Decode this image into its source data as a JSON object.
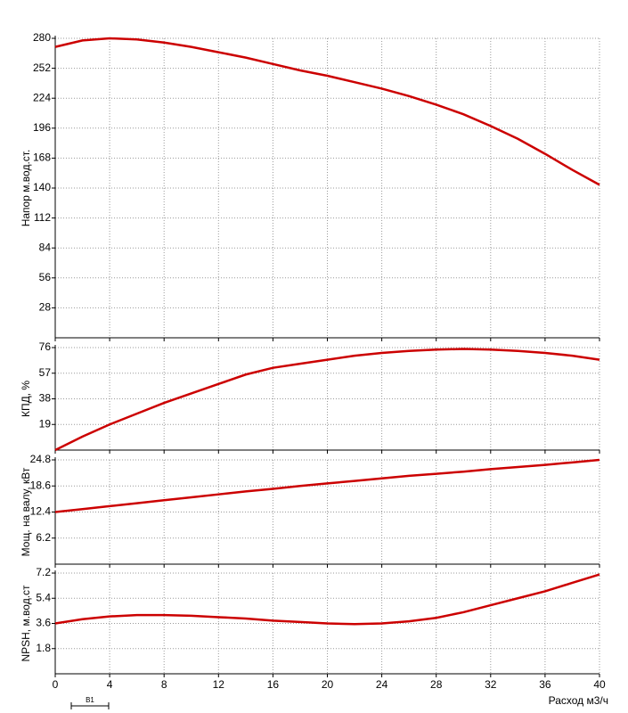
{
  "chart_data": [
    {
      "type": "line",
      "y_label": "Напор м.вод.ст.",
      "color": "#cc0000",
      "grid": true,
      "x": [
        0,
        2,
        4,
        6,
        8,
        10,
        12,
        14,
        16,
        18,
        20,
        22,
        24,
        26,
        28,
        30,
        32,
        34,
        36,
        38,
        40
      ],
      "values": [
        272,
        278,
        280,
        279,
        276,
        272,
        267,
        262,
        256,
        250,
        245,
        239,
        233,
        226,
        218,
        209,
        198,
        186,
        172,
        157,
        143
      ],
      "xlim": [
        0,
        40
      ],
      "ylim": [
        0,
        280
      ],
      "yticks": [
        28,
        56,
        84,
        112,
        140,
        168,
        196,
        224,
        252,
        280
      ]
    },
    {
      "type": "line",
      "y_label": "КПД, %",
      "color": "#cc0000",
      "grid": true,
      "x": [
        0,
        2,
        4,
        6,
        8,
        10,
        12,
        14,
        16,
        18,
        20,
        22,
        24,
        26,
        28,
        30,
        32,
        34,
        36,
        38,
        40
      ],
      "values": [
        0,
        10,
        19,
        27,
        35,
        42,
        49,
        56,
        61,
        64,
        67,
        70,
        72,
        73.5,
        74.5,
        75,
        74.5,
        73.5,
        72,
        70,
        67
      ],
      "xlim": [
        0,
        40
      ],
      "ylim": [
        0,
        76
      ],
      "yticks": [
        19,
        38,
        57,
        76
      ]
    },
    {
      "type": "line",
      "y_label": "Мощ. на валу, кВт",
      "color": "#cc0000",
      "grid": true,
      "x": [
        0,
        2,
        4,
        6,
        8,
        10,
        12,
        14,
        16,
        18,
        20,
        22,
        24,
        26,
        28,
        30,
        32,
        34,
        36,
        38,
        40
      ],
      "values": [
        12.4,
        13.1,
        13.8,
        14.5,
        15.2,
        15.9,
        16.6,
        17.3,
        17.9,
        18.6,
        19.2,
        19.8,
        20.4,
        21,
        21.5,
        22,
        22.6,
        23.1,
        23.6,
        24.2,
        24.8
      ],
      "xlim": [
        0,
        40
      ],
      "ylim": [
        0,
        24.8
      ],
      "yticks": [
        6.2,
        12.4,
        18.6,
        24.8
      ]
    },
    {
      "type": "line",
      "y_label": "NPSH, м.вод.ст",
      "x_label": "Расход м3/ч",
      "color": "#cc0000",
      "grid": true,
      "x": [
        0,
        2,
        4,
        6,
        8,
        10,
        12,
        14,
        16,
        18,
        20,
        22,
        24,
        26,
        28,
        30,
        32,
        34,
        36,
        38,
        40
      ],
      "values": [
        3.6,
        3.9,
        4.1,
        4.2,
        4.2,
        4.15,
        4.05,
        3.95,
        3.8,
        3.7,
        3.6,
        3.55,
        3.6,
        3.75,
        4.0,
        4.4,
        4.9,
        5.4,
        5.9,
        6.5,
        7.1
      ],
      "xlim": [
        0,
        40
      ],
      "ylim": [
        0,
        7.2
      ],
      "yticks": [
        1.8,
        3.6,
        5.4,
        7.2
      ],
      "xticks": [
        0,
        4,
        8,
        12,
        16,
        20,
        24,
        28,
        32,
        36,
        40
      ],
      "marker_label": "B1"
    }
  ]
}
